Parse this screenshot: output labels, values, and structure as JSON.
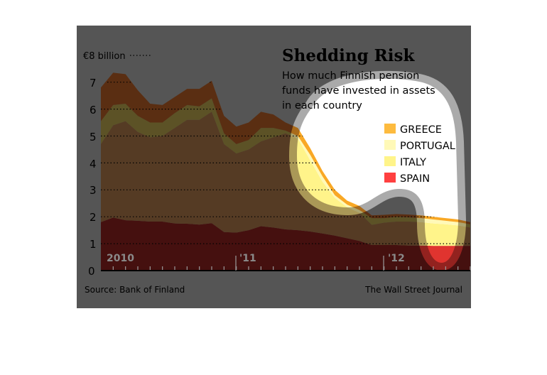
{
  "chart_data": {
    "type": "area",
    "stacked": true,
    "title": "Shedding Risk",
    "subtitle_lines": [
      "How much Finnish pension",
      "funds have invested in assets",
      "in each country"
    ],
    "ylabel": "€8 billion",
    "ylim": [
      0,
      8
    ],
    "y_ticks": [
      "7",
      "6",
      "5",
      "4",
      "3",
      "2",
      "1",
      "0"
    ],
    "x_tick_labels": [
      "2010",
      "'11",
      "'12"
    ],
    "grid": true,
    "legend_placement": "top-right",
    "categories": [
      "2010-02",
      "2010-03",
      "2010-04",
      "2010-05",
      "2010-06",
      "2010-07",
      "2010-08",
      "2010-09",
      "2010-10",
      "2010-11",
      "2010-12",
      "2011-01",
      "2011-02",
      "2011-03",
      "2011-04",
      "2011-05",
      "2011-06",
      "2011-07",
      "2011-08",
      "2011-09",
      "2011-10",
      "2011-11",
      "2011-12",
      "2012-01",
      "2012-02",
      "2012-03",
      "2012-04",
      "2012-05",
      "2012-06",
      "2012-07",
      "2012-08"
    ],
    "series": [
      {
        "name": "SPAIN",
        "color": "#e0342f",
        "dim_color": "#45100f",
        "values": [
          1.8,
          1.97,
          1.87,
          1.85,
          1.82,
          1.82,
          1.75,
          1.74,
          1.71,
          1.76,
          1.43,
          1.41,
          1.5,
          1.65,
          1.6,
          1.53,
          1.5,
          1.45,
          1.38,
          1.3,
          1.2,
          1.1,
          0.95,
          0.95,
          0.95,
          0.93,
          0.93,
          0.92,
          0.92,
          0.92,
          0.92
        ]
      },
      {
        "name": "ITALY",
        "color": "#fff48a",
        "dim_color": "#553b24",
        "values": [
          2.9,
          3.43,
          3.68,
          3.3,
          3.13,
          3.18,
          3.55,
          3.86,
          3.89,
          4.14,
          3.27,
          2.94,
          3.0,
          3.15,
          3.35,
          3.57,
          3.4,
          2.65,
          1.92,
          1.4,
          1.15,
          1.05,
          0.75,
          0.83,
          0.87,
          0.89,
          0.87,
          0.83,
          0.8,
          0.76,
          0.68
        ]
      },
      {
        "name": "PORTUGAL",
        "color": "#fff9b8",
        "dim_color": "#5c5226",
        "values": [
          0.85,
          0.75,
          0.65,
          0.6,
          0.55,
          0.5,
          0.55,
          0.55,
          0.5,
          0.5,
          0.4,
          0.35,
          0.35,
          0.5,
          0.35,
          0.1,
          0.1,
          0.2,
          0.2,
          0.1,
          0.1,
          0.1,
          0.25,
          0.17,
          0.18,
          0.16,
          0.15,
          0.15,
          0.13,
          0.12,
          0.12
        ]
      },
      {
        "name": "GREECE",
        "color": "#f9a825",
        "dim_color": "#5a2e12",
        "values": [
          1.25,
          1.2,
          1.1,
          0.95,
          0.7,
          0.65,
          0.6,
          0.6,
          0.65,
          0.65,
          0.65,
          0.65,
          0.65,
          0.6,
          0.5,
          0.3,
          0.3,
          0.25,
          0.2,
          0.2,
          0.15,
          0.15,
          0.1,
          0.12,
          0.1,
          0.1,
          0.1,
          0.1,
          0.1,
          0.1,
          0.08
        ]
      }
    ],
    "legend": [
      {
        "label": "GREECE",
        "color": "#fdbb3f"
      },
      {
        "label": "PORTUGAL",
        "color": "#fff9b8"
      },
      {
        "label": "ITALY",
        "color": "#fff48a"
      },
      {
        "label": "SPAIN",
        "color": "#ff4040"
      }
    ],
    "source": "Source: Bank of Finland",
    "credit": "The Wall Street Journal"
  }
}
